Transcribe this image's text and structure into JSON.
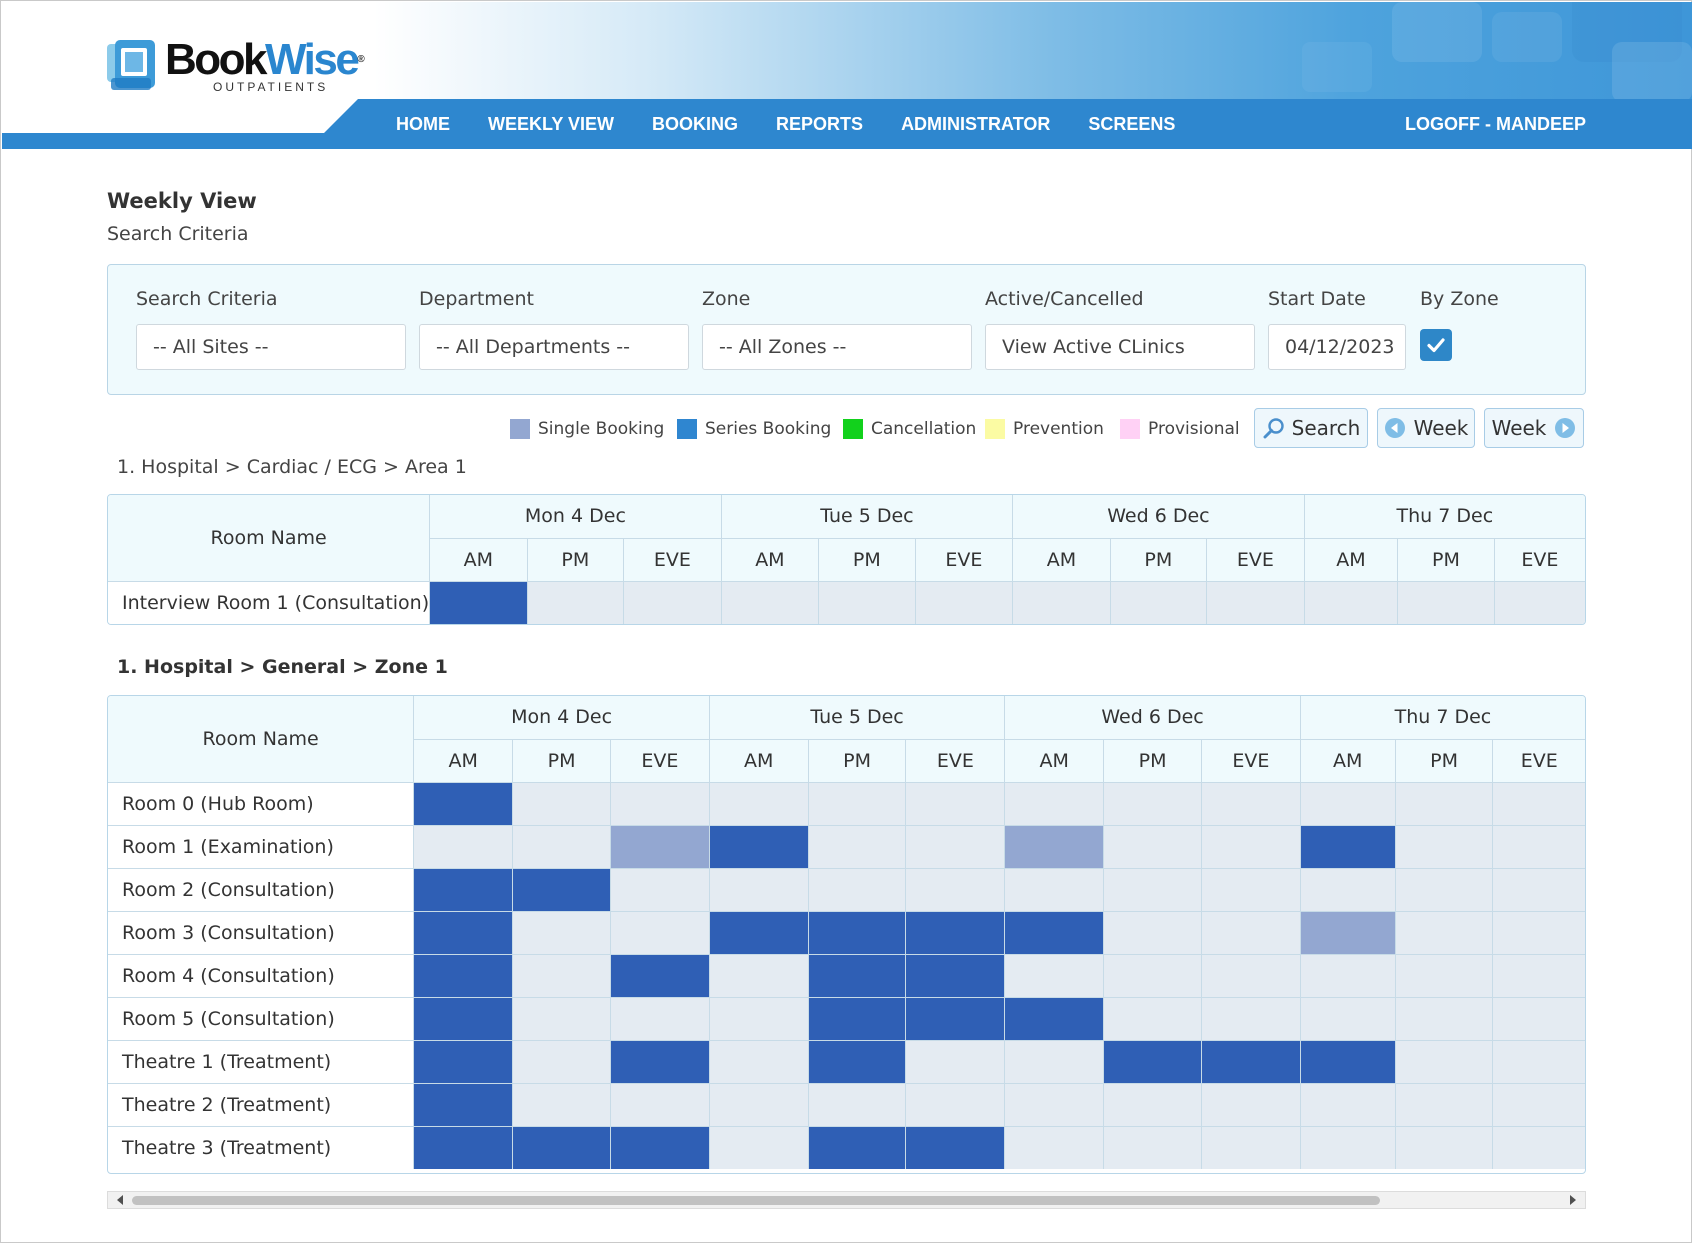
{
  "app": {
    "logo_name_1": "Book",
    "logo_name_2": "Wise",
    "logo_reg": "®",
    "logo_sub": "OUTPATIENTS"
  },
  "nav": {
    "items": [
      "HOME",
      "WEEKLY VIEW",
      "BOOKING",
      "REPORTS",
      "ADMINISTRATOR",
      "SCREENS"
    ],
    "logoff": "LOGOFF - MANDEEP"
  },
  "page": {
    "title": "Weekly View",
    "subtitle": "Search Criteria"
  },
  "search": {
    "fields": [
      {
        "label": "Search Criteria",
        "value": "-- All Sites --"
      },
      {
        "label": "Department",
        "value": "-- All Departments --"
      },
      {
        "label": "Zone",
        "value": "-- All Zones --"
      },
      {
        "label": "Active/Cancelled",
        "value": "View Active CLinics"
      },
      {
        "label": "Start Date",
        "value": "04/12/2023"
      }
    ],
    "by_zone_label": "By Zone",
    "by_zone_checked": true
  },
  "legend": [
    {
      "label": "Single Booking",
      "color": "#93a7d1"
    },
    {
      "label": "Series Booking",
      "color": "#2f86d0"
    },
    {
      "label": "Cancellation",
      "color": "#12d11c"
    },
    {
      "label": "Prevention",
      "color": "#fbfba3"
    },
    {
      "label": "Provisional",
      "color": "#ffd1f5"
    }
  ],
  "buttons": {
    "search": "Search",
    "prev_week": "Week",
    "next_week": "Week"
  },
  "colors": {
    "series_cell": "#2f5fb5",
    "single_cell": "#93a7d1",
    "empty_cell": "#e4ebf2",
    "nav_blue": "#2e87cf"
  },
  "days": [
    "Mon 4 Dec",
    "Tue 5 Dec",
    "Wed 6 Dec",
    "Thu 7 Dec"
  ],
  "sessions": [
    "AM",
    "PM",
    "EVE"
  ],
  "room_name_header": "Room Name",
  "sections": [
    {
      "path": "1. Hospital  >  Cardiac / ECG  >  Area 1",
      "bold": false,
      "rooms": [
        {
          "name": "Interview Room 1 (Consultation)",
          "slots": [
            "S",
            "",
            "",
            "",
            "",
            "",
            "",
            "",
            "",
            "",
            "",
            ""
          ]
        }
      ]
    },
    {
      "path": "1. Hospital  >  General  >  Zone 1",
      "bold": true,
      "rooms": [
        {
          "name": "Room 0 (Hub Room)",
          "slots": [
            "S",
            "",
            "",
            "",
            "",
            "",
            "",
            "",
            "",
            "",
            "",
            ""
          ]
        },
        {
          "name": "Room 1 (Examination)",
          "slots": [
            "",
            "",
            "B",
            "S",
            "",
            "",
            "B",
            "",
            "",
            "S",
            "",
            ""
          ]
        },
        {
          "name": "Room 2 (Consultation)",
          "slots": [
            "S",
            "S",
            "",
            "",
            "",
            "",
            "",
            "",
            "",
            "",
            "",
            ""
          ]
        },
        {
          "name": "Room 3 (Consultation)",
          "slots": [
            "S",
            "",
            "",
            "S",
            "S",
            "S",
            "S",
            "",
            "",
            "B",
            "",
            ""
          ]
        },
        {
          "name": "Room 4 (Consultation)",
          "slots": [
            "S",
            "",
            "S",
            "",
            "S",
            "S",
            "",
            "",
            "",
            "",
            "",
            ""
          ]
        },
        {
          "name": "Room 5 (Consultation)",
          "slots": [
            "S",
            "",
            "",
            "",
            "S",
            "S",
            "S",
            "",
            "",
            "",
            "",
            ""
          ]
        },
        {
          "name": "Theatre 1 (Treatment)",
          "slots": [
            "S",
            "",
            "S",
            "",
            "S",
            "",
            "",
            "S",
            "S",
            "S",
            "",
            ""
          ]
        },
        {
          "name": "Theatre 2 (Treatment)",
          "slots": [
            "S",
            "",
            "",
            "",
            "",
            "",
            "",
            "",
            "",
            "",
            "",
            ""
          ]
        },
        {
          "name": "Theatre 3 (Treatment)",
          "slots": [
            "S",
            "S",
            "S",
            "",
            "S",
            "S",
            "",
            "",
            "",
            "",
            "",
            ""
          ]
        }
      ]
    }
  ]
}
